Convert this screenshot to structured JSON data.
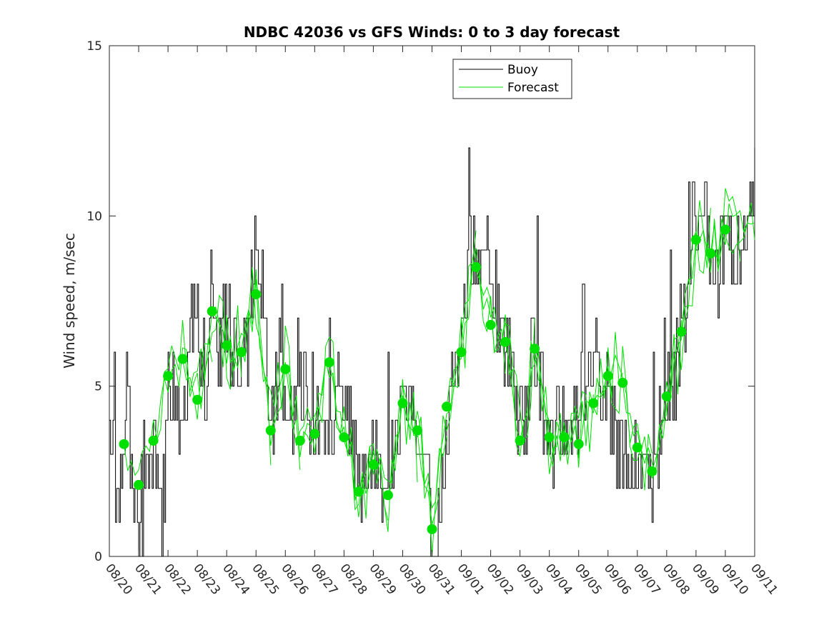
{
  "chart_data": {
    "type": "line",
    "title": "NDBC 42036 vs GFS Winds: 0 to 3 day forecast",
    "xlabel": "",
    "ylabel": "Wind speed, m/sec",
    "ylim": [
      0,
      15
    ],
    "yticks": [
      "0",
      "5",
      "10",
      "15"
    ],
    "xlim_days": [
      0,
      22
    ],
    "xtick_labels": [
      "08/20",
      "08/21",
      "08/22",
      "08/23",
      "08/24",
      "08/25",
      "08/26",
      "08/27",
      "08/28",
      "08/29",
      "08/30",
      "08/31",
      "09/01",
      "09/02",
      "09/03",
      "09/04",
      "09/05",
      "09/06",
      "09/07",
      "09/08",
      "09/09",
      "09/10",
      "09/11"
    ],
    "legend": {
      "position": "top-center",
      "entries": [
        "Buoy",
        "Forecast"
      ]
    },
    "colors": {
      "buoy": "#000000",
      "forecast": "#00e000",
      "axes": "#262626"
    },
    "buoy_key_values": {
      "x": [
        0,
        0.3,
        0.6,
        0.8,
        1.0,
        1.2,
        1.5,
        1.8,
        2.0,
        2.4,
        2.7,
        3.0,
        3.3,
        3.5,
        3.7,
        3.9,
        4.2,
        4.5,
        4.8,
        5.0,
        5.2,
        5.5,
        5.8,
        6.0,
        6.3,
        6.6,
        6.9,
        7.2,
        7.5,
        7.8,
        8.1,
        8.4,
        8.7,
        9.0,
        9.3,
        9.6,
        9.9,
        10.2,
        10.5,
        10.8,
        11.0,
        11.3,
        11.6,
        11.8,
        12.0,
        12.3,
        12.6,
        12.9,
        13.2,
        13.5,
        13.8,
        14.1,
        14.4,
        14.7,
        15.0,
        15.3,
        15.6,
        15.9,
        16.2,
        16.5,
        16.8,
        17.1,
        17.4,
        17.7,
        18.0,
        18.3,
        18.6,
        18.9,
        19.2,
        19.5,
        19.8,
        20.0,
        20.2,
        20.5,
        20.8,
        21.0,
        21.3,
        21.6,
        22.0
      ],
      "y": [
        3,
        2,
        4,
        3,
        0,
        2,
        3,
        1,
        5,
        4,
        6,
        7,
        5,
        8,
        6,
        7,
        6,
        5,
        7,
        9,
        8,
        4,
        6,
        5,
        4,
        5,
        3,
        4,
        3,
        5,
        4,
        3,
        2,
        3,
        2,
        3,
        4,
        5,
        3,
        4,
        0,
        2,
        5,
        6,
        7,
        9,
        8,
        9,
        7,
        6,
        5,
        4,
        6,
        5,
        3,
        4,
        3,
        4,
        5,
        6,
        5,
        4,
        3,
        2,
        3,
        2,
        3,
        4,
        5,
        6,
        9,
        10,
        11,
        9,
        8,
        10,
        9,
        10,
        10
      ]
    },
    "forecast_markers": {
      "x": [
        0.5,
        1.0,
        1.5,
        2.0,
        2.5,
        3.0,
        3.5,
        4.0,
        4.5,
        5.0,
        5.5,
        6.0,
        6.5,
        7.0,
        7.5,
        8.0,
        8.5,
        9.0,
        9.5,
        10.0,
        10.5,
        11.0,
        11.5,
        12.0,
        12.5,
        13.0,
        13.5,
        14.0,
        14.5,
        15.0,
        15.5,
        16.0,
        16.5,
        17.0,
        17.5,
        18.0,
        18.5,
        19.0,
        19.5,
        20.0,
        20.5,
        21.0
      ],
      "y": [
        3.3,
        2.1,
        3.4,
        5.3,
        5.8,
        4.6,
        7.2,
        6.2,
        6.0,
        7.7,
        3.7,
        5.5,
        3.4,
        3.6,
        5.7,
        3.5,
        1.9,
        2.7,
        1.8,
        4.5,
        3.7,
        0.8,
        4.4,
        6.0,
        8.5,
        6.8,
        6.3,
        3.4,
        6.1,
        3.5,
        3.5,
        3.3,
        4.5,
        5.3,
        5.1,
        3.2,
        2.5,
        4.7,
        6.6,
        9.3,
        8.9,
        9.6
      ]
    }
  }
}
